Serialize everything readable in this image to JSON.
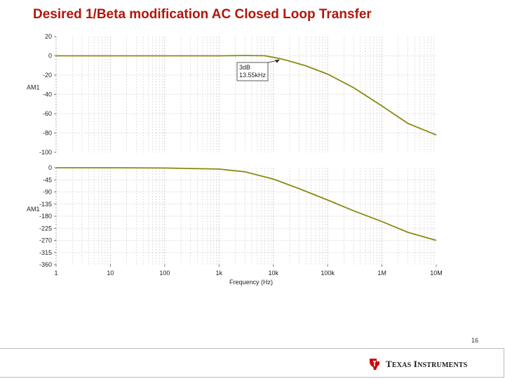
{
  "slide": {
    "title": "Desired 1/Beta modification AC Closed Loop Transfer",
    "page_number": "16",
    "logo_text": "Texas Instruments"
  },
  "colors": {
    "title": "#b1160b",
    "trace": "#8a8a12",
    "grid": "#bfbfbf",
    "logo_red": "#cc0000"
  },
  "chart_data": [
    {
      "type": "line",
      "scale_x": "log",
      "xlim": [
        1,
        10000000
      ],
      "ylim": [
        -100,
        20
      ],
      "ylabel": "AM1",
      "yticks": [
        "20",
        "0",
        "-20",
        "-40",
        "-60",
        "-80",
        "-100"
      ],
      "grid": true,
      "series": [
        {
          "x": [
            1,
            10,
            100,
            1000,
            3000,
            7000,
            13550,
            20000,
            40000,
            100000,
            300000,
            1000000,
            3000000,
            10000000
          ],
          "y": [
            0,
            0,
            0,
            0,
            0.3,
            0.1,
            -3,
            -5.5,
            -10.5,
            -19,
            -33,
            -52,
            -70,
            -82
          ]
        }
      ],
      "annotations": [
        {
          "text": [
            "3dB",
            "13.55kHz"
          ],
          "x": 13550,
          "y": -3
        }
      ]
    },
    {
      "type": "line",
      "scale_x": "log",
      "xlim": [
        1,
        10000000
      ],
      "ylim": [
        -360,
        0
      ],
      "ylabel": "AM1",
      "xlabel": "Frequency (Hz)",
      "yticks": [
        "0",
        "-45",
        "-90",
        "-135",
        "-180",
        "-225",
        "-270",
        "-315",
        "-360"
      ],
      "xticks": [
        "1",
        "10",
        "100",
        "1k",
        "10k",
        "100k",
        "1M",
        "10M"
      ],
      "grid": true,
      "series": [
        {
          "x": [
            1,
            10,
            100,
            1000,
            3000,
            10000,
            30000,
            100000,
            300000,
            1000000,
            3000000,
            10000000
          ],
          "y": [
            0,
            0,
            -1,
            -5,
            -15,
            -42,
            -78,
            -120,
            -160,
            -200,
            -240,
            -270
          ]
        }
      ]
    }
  ]
}
